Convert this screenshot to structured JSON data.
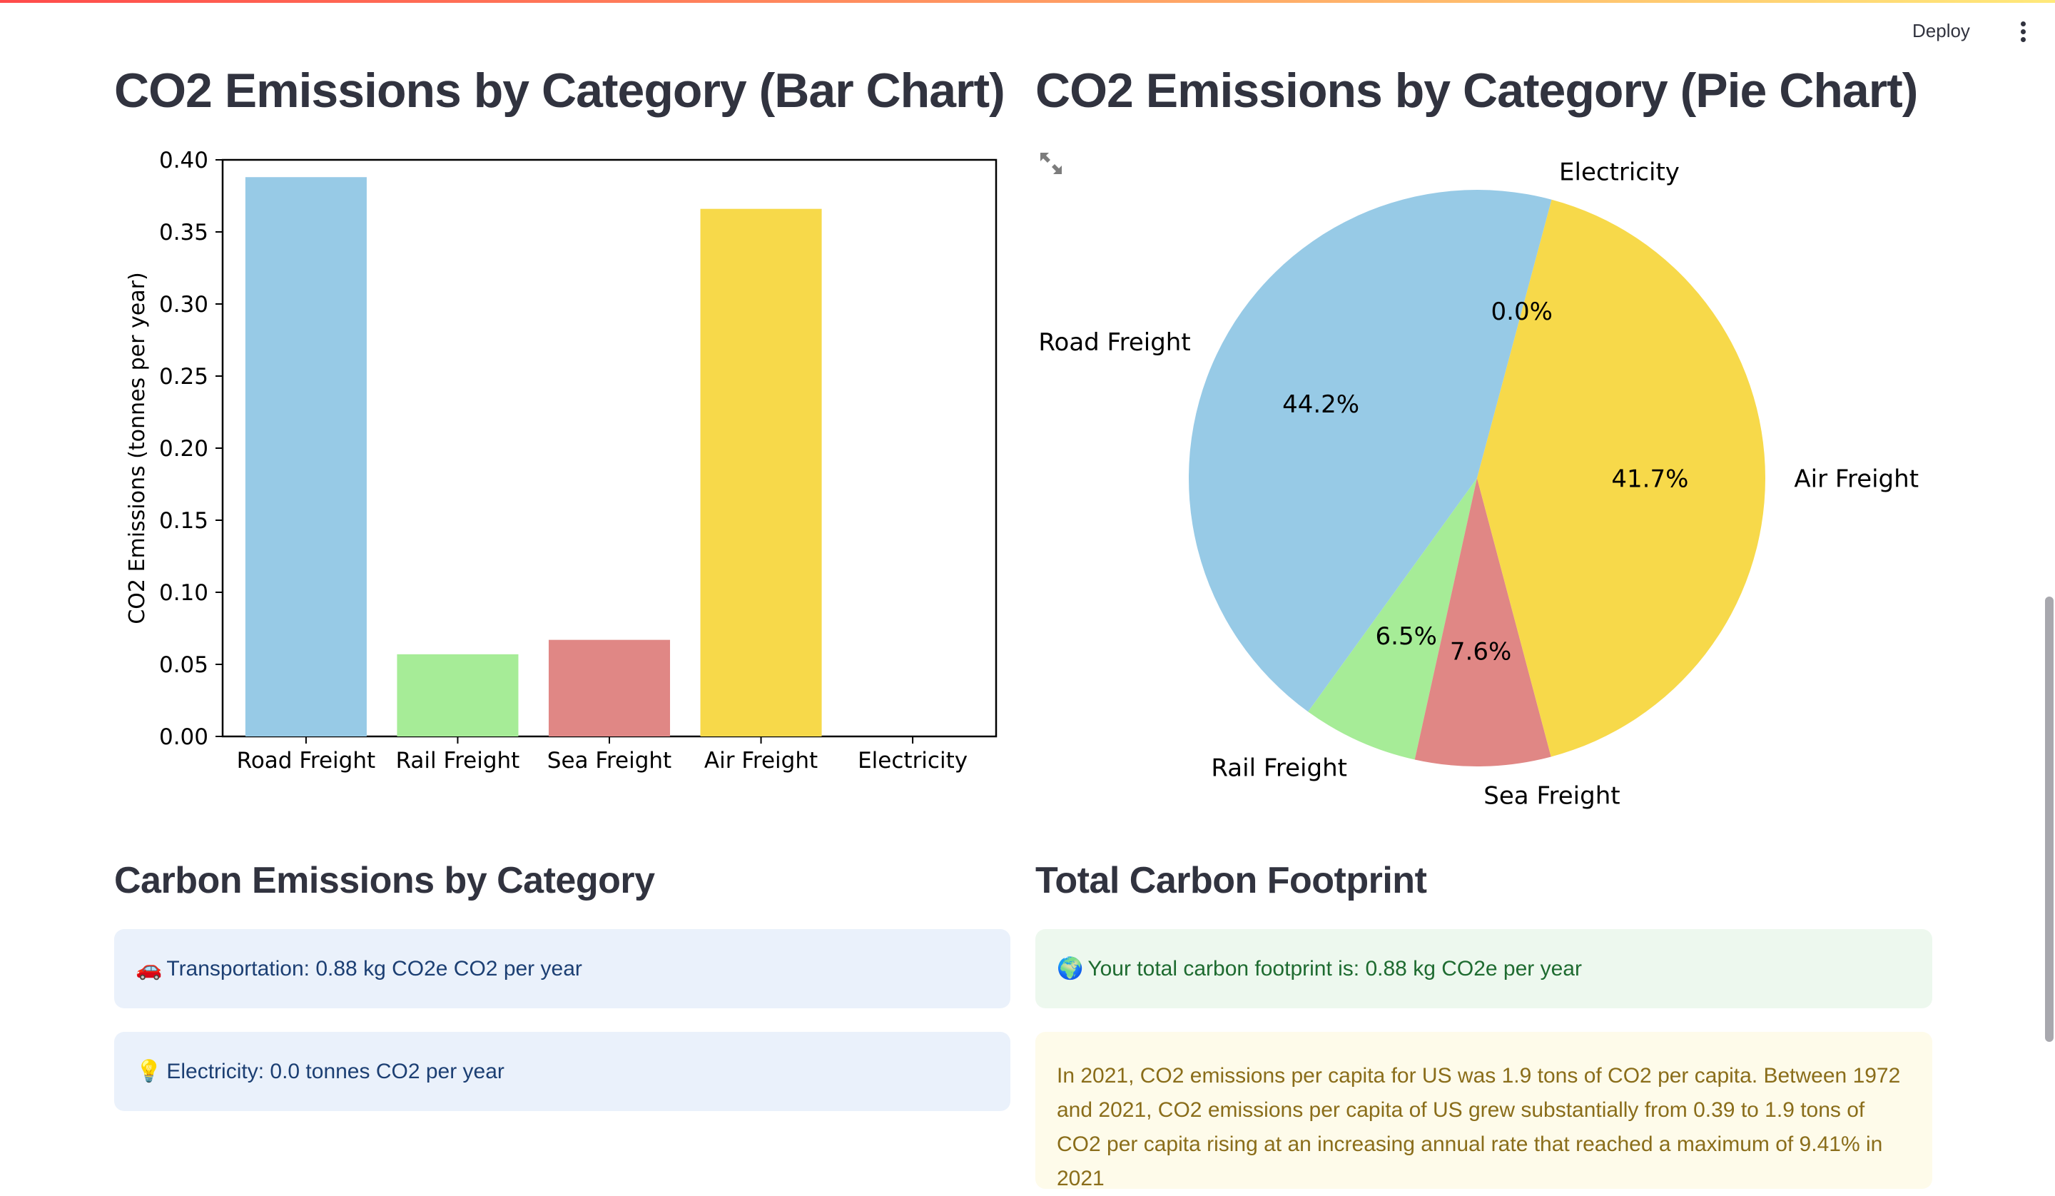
{
  "header": {
    "deploy_label": "Deploy",
    "menu_icon": "more-vertical-icon"
  },
  "bar_section": {
    "title": "CO2 Emissions by Category (Bar Chart)"
  },
  "pie_section": {
    "title": "CO2 Emissions by Category (Pie Chart)",
    "expand_icon": "fullscreen-expand-icon"
  },
  "chart_data": [
    {
      "type": "bar",
      "title": "",
      "xlabel": "",
      "ylabel": "CO2 Emissions (tonnes per year)",
      "categories": [
        "Road Freight",
        "Rail Freight",
        "Sea Freight",
        "Air Freight",
        "Electricity"
      ],
      "values": [
        0.388,
        0.057,
        0.067,
        0.366,
        0.0
      ],
      "colors": [
        "#97cae6",
        "#a6ec97",
        "#e08785",
        "#f7d94a",
        "#c8a2c8"
      ],
      "ylim": [
        0,
        0.4
      ],
      "yticks": [
        "0.00",
        "0.05",
        "0.10",
        "0.15",
        "0.20",
        "0.25",
        "0.30",
        "0.35",
        "0.40"
      ],
      "grid": false
    },
    {
      "type": "pie",
      "title": "",
      "labels": [
        "Road Freight",
        "Rail Freight",
        "Sea Freight",
        "Air Freight",
        "Electricity"
      ],
      "values": [
        44.2,
        6.5,
        7.6,
        41.7,
        0.0
      ],
      "pct_labels": [
        "44.2%",
        "6.5%",
        "7.6%",
        "41.7%",
        "0.0%"
      ],
      "colors": [
        "#97cae6",
        "#a6ec97",
        "#e08785",
        "#f7d94a",
        "#c8a2c8"
      ],
      "start_angle_deg": 75
    }
  ],
  "emissions_section": {
    "title": "Carbon Emissions by Category",
    "items": [
      {
        "emoji": "🚗",
        "icon": "car-icon",
        "text": "Transportation: 0.88 kg CO2e CO2 per year"
      },
      {
        "emoji": "💡",
        "icon": "lightbulb-icon",
        "text": "Electricity: 0.0 tonnes CO2 per year"
      }
    ]
  },
  "total_section": {
    "title": "Total Carbon Footprint",
    "total": {
      "emoji": "🌍",
      "icon": "globe-icon",
      "text": "Your total carbon footprint is: 0.88 kg CO2e per year"
    },
    "context_text": "In 2021, CO2 emissions per capita for US was 1.9 tons of CO2 per capita. Between 1972 and 2021, CO2 emissions per capita of US grew substantially from 0.39 to 1.9 tons of CO2 per capita rising at an increasing annual rate that reached a maximum of 9.41% in 2021"
  },
  "colors": {
    "accent_gradient_start": "#ff4b4b",
    "accent_gradient_end": "#ffe97a",
    "info_bg": "#eaf1fb",
    "success_bg": "#edf8ee",
    "warning_bg": "#fefbea"
  }
}
